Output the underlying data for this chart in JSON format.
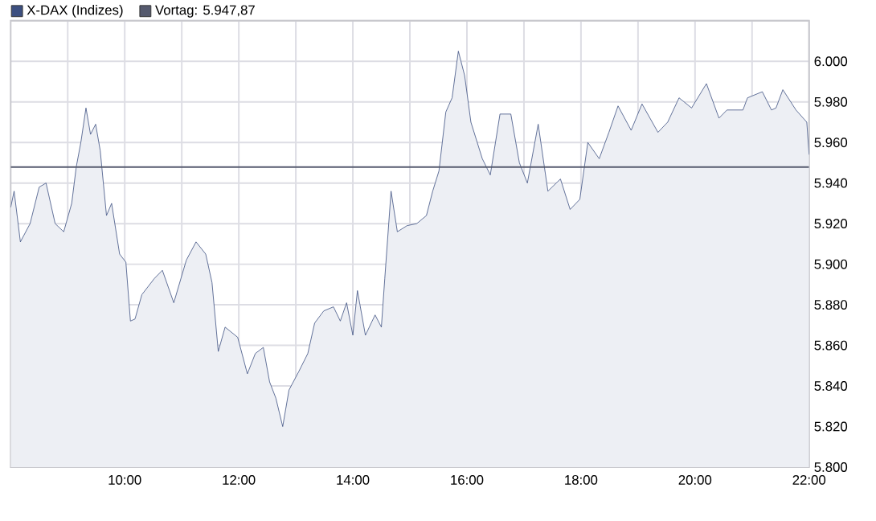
{
  "chart_data": {
    "type": "area",
    "series": [
      {
        "name": "X-DAX (Indizes)",
        "color": "#3c4f80",
        "x": [
          8.0,
          8.06,
          8.17,
          8.34,
          8.5,
          8.62,
          8.78,
          8.93,
          9.07,
          9.15,
          9.23,
          9.32,
          9.4,
          9.49,
          9.57,
          9.68,
          9.77,
          9.91,
          10.02,
          10.1,
          10.18,
          10.3,
          10.52,
          10.66,
          10.86,
          11.08,
          11.25,
          11.42,
          11.53,
          11.64,
          11.76,
          11.98,
          12.15,
          12.29,
          12.43,
          12.54,
          12.65,
          12.77,
          12.88,
          13.05,
          13.21,
          13.33,
          13.49,
          13.66,
          13.78,
          13.89,
          14.0,
          14.08,
          14.22,
          14.39,
          14.5,
          14.56,
          14.67,
          14.78,
          14.95,
          15.12,
          15.29,
          15.4,
          15.51,
          15.63,
          15.74,
          15.85,
          15.96,
          16.07,
          16.27,
          16.41,
          16.58,
          16.77,
          16.92,
          17.06,
          17.25,
          17.42,
          17.64,
          17.81,
          17.98,
          18.12,
          18.32,
          18.49,
          18.65,
          18.88,
          19.07,
          19.35,
          19.52,
          19.72,
          19.94,
          20.2,
          20.42,
          20.56,
          20.84,
          20.92,
          21.18,
          21.34,
          21.42,
          21.54,
          21.77,
          21.96,
          22.0
        ],
        "values": [
          5928,
          5936,
          5911,
          5920,
          5938,
          5940,
          5920,
          5916,
          5930,
          5948,
          5960,
          5977,
          5964,
          5969,
          5956,
          5924,
          5930,
          5905,
          5901,
          5872,
          5873,
          5885,
          5893,
          5897,
          5881,
          5902,
          5911,
          5905,
          5891,
          5857,
          5869,
          5864,
          5846,
          5856,
          5859,
          5842,
          5834,
          5820,
          5838,
          5847,
          5856,
          5871,
          5877,
          5879,
          5872,
          5881,
          5865,
          5887,
          5865,
          5875,
          5869,
          5893,
          5936,
          5916,
          5919,
          5920,
          5924,
          5936,
          5946,
          5975,
          5982,
          6005,
          5993,
          5970,
          5952,
          5944,
          5974,
          5974,
          5950,
          5940,
          5969,
          5936,
          5942,
          5927,
          5932,
          5960,
          5952,
          5965,
          5978,
          5966,
          5979,
          5965,
          5970,
          5982,
          5977,
          5989,
          5972,
          5976,
          5976,
          5982,
          5985,
          5976,
          5977,
          5986,
          5976,
          5970,
          5954
        ]
      }
    ],
    "xlim": [
      8,
      22
    ],
    "xticks": [
      {
        "value": 9,
        "label": null
      },
      {
        "value": 10,
        "label": "10:00"
      },
      {
        "value": 11,
        "label": null
      },
      {
        "value": 12,
        "label": "12:00"
      },
      {
        "value": 13,
        "label": null
      },
      {
        "value": 14,
        "label": "14:00"
      },
      {
        "value": 15,
        "label": null
      },
      {
        "value": 16,
        "label": "16:00"
      },
      {
        "value": 17,
        "label": null
      },
      {
        "value": 18,
        "label": "18:00"
      },
      {
        "value": 19,
        "label": null
      },
      {
        "value": 20,
        "label": "20:00"
      },
      {
        "value": 21,
        "label": null
      },
      {
        "value": 22,
        "label": "22:00"
      }
    ],
    "ylim": [
      5800,
      6020
    ],
    "yticks": [
      {
        "value": 5800,
        "label": "5.800"
      },
      {
        "value": 5820,
        "label": "5.820"
      },
      {
        "value": 5840,
        "label": "5.840"
      },
      {
        "value": 5860,
        "label": "5.860"
      },
      {
        "value": 5880,
        "label": "5.880"
      },
      {
        "value": 5900,
        "label": "5.900"
      },
      {
        "value": 5920,
        "label": "5.920"
      },
      {
        "value": 5940,
        "label": "5.940"
      },
      {
        "value": 5960,
        "label": "5.960"
      },
      {
        "value": 5980,
        "label": "5.980"
      },
      {
        "value": 6000,
        "label": "6.000"
      },
      {
        "value": 6020,
        "label": null
      }
    ],
    "ref_lines": [
      {
        "axis": "y",
        "value": 5947.87,
        "label": "Vortag: 5.947,87",
        "color": "#555a6e"
      }
    ],
    "grid": true,
    "legend": "top left"
  }
}
